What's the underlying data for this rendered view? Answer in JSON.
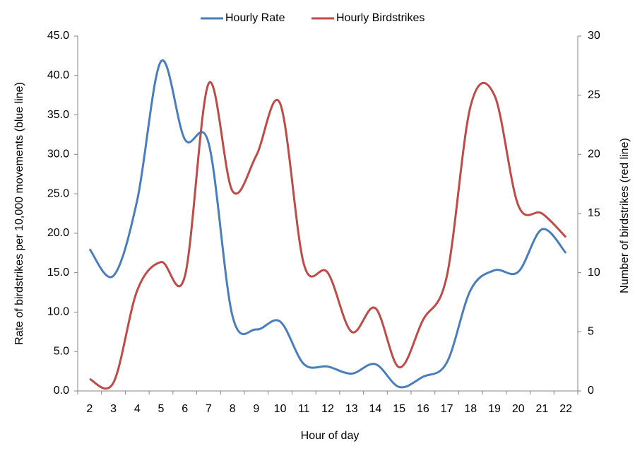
{
  "chart_data": {
    "type": "line",
    "xlabel": "Hour of day",
    "ylabel": "Rate of birdstrikes per 10,000 movements (blue line)",
    "y2label": "Number of birdstrikes (red line)",
    "categories": [
      2,
      3,
      4,
      5,
      6,
      7,
      8,
      9,
      10,
      11,
      12,
      13,
      14,
      15,
      16,
      17,
      18,
      19,
      20,
      21,
      22
    ],
    "series": [
      {
        "name": "Hourly Rate",
        "color": "#4a7ebb",
        "values": [
          18.0,
          14.6,
          24.2,
          41.8,
          31.9,
          31.4,
          9.5,
          7.8,
          8.8,
          3.4,
          3.1,
          2.2,
          3.4,
          0.5,
          1.8,
          3.6,
          12.8,
          15.3,
          15.1,
          20.5,
          17.5
        ]
      },
      {
        "name": "Hourly Birdstrikes",
        "color": "#be4b48",
        "axis": "y2",
        "values": [
          1.0,
          0.7,
          8.5,
          10.9,
          9.7,
          26.0,
          16.9,
          19.9,
          24.3,
          10.7,
          10.0,
          5.0,
          7.0,
          2.0,
          6.0,
          9.7,
          24.1,
          25.0,
          15.7,
          15.0,
          13.0
        ]
      }
    ],
    "ylim": [
      0,
      45
    ],
    "yticks": [
      {
        "value": 0,
        "label": "0.0"
      },
      {
        "value": 5,
        "label": "5.0"
      },
      {
        "value": 10,
        "label": "10.0"
      },
      {
        "value": 15,
        "label": "15.0"
      },
      {
        "value": 20,
        "label": "20.0"
      },
      {
        "value": 25,
        "label": "25.0"
      },
      {
        "value": 30,
        "label": "30.0"
      },
      {
        "value": 35,
        "label": "35.0"
      },
      {
        "value": 40,
        "label": "40.0"
      },
      {
        "value": 45,
        "label": "45.0"
      }
    ],
    "y2lim": [
      0,
      30
    ],
    "y2ticks": [
      0,
      5,
      10,
      15,
      20,
      25,
      30
    ],
    "legend": "top"
  }
}
